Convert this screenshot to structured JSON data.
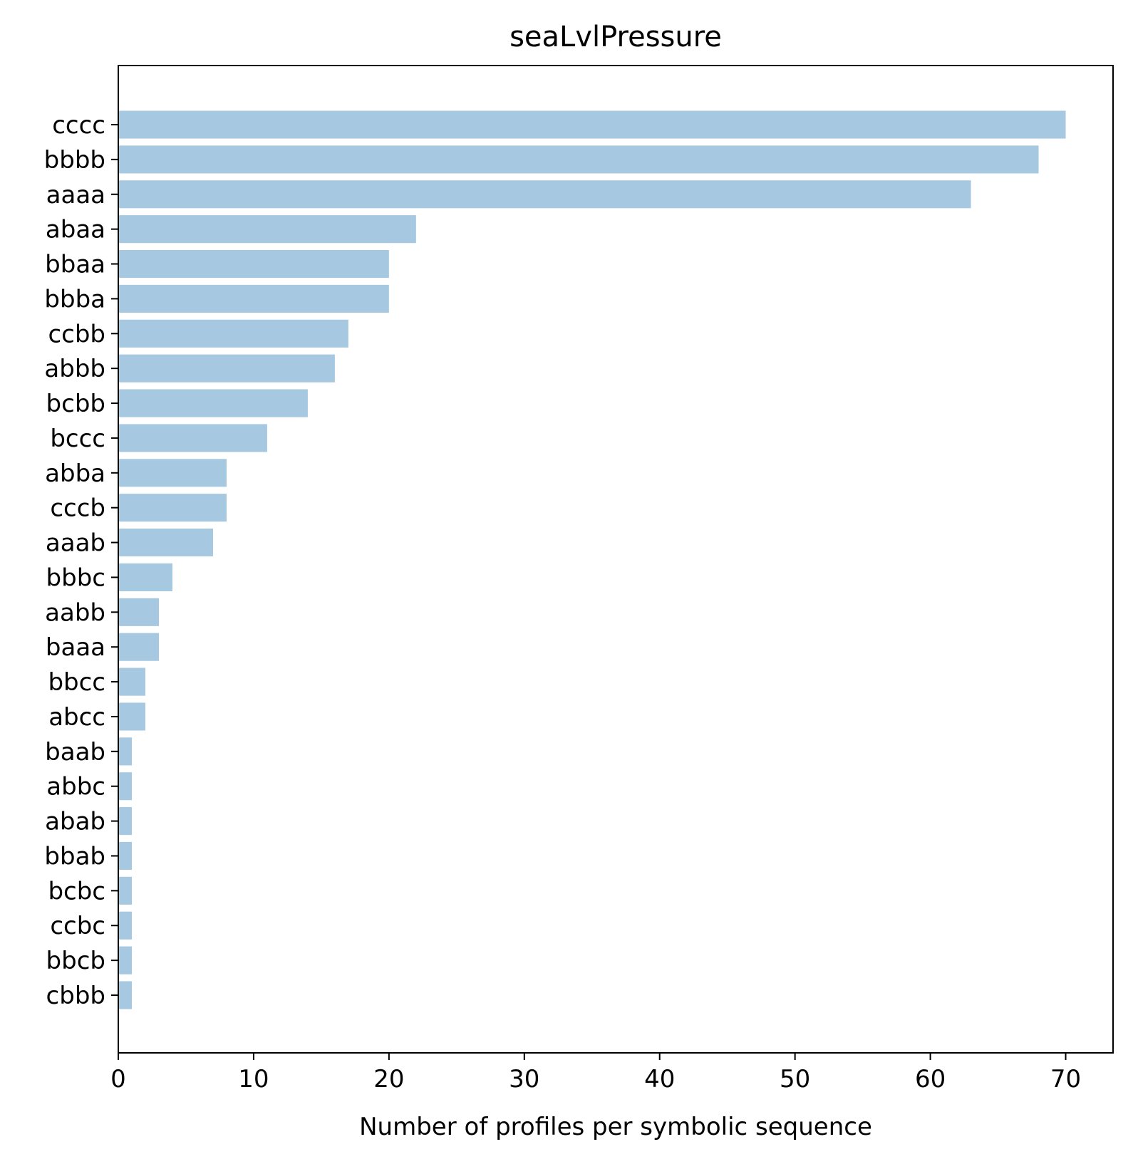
{
  "chart_data": {
    "type": "bar",
    "orientation": "horizontal",
    "title": "seaLvlPressure",
    "xlabel": "Number of profiles per symbolic sequence",
    "ylabel": "",
    "xlim": [
      0,
      73.5
    ],
    "xticks": [
      0,
      10,
      20,
      30,
      40,
      50,
      60,
      70
    ],
    "grid": false,
    "bar_color": "#a6c8e0",
    "categories": [
      "cccc",
      "bbbb",
      "aaaa",
      "abaa",
      "bbaa",
      "bbba",
      "ccbb",
      "abbb",
      "bcbb",
      "bccc",
      "abba",
      "cccb",
      "aaab",
      "bbbc",
      "aabb",
      "baaa",
      "bbcc",
      "abcc",
      "baab",
      "abbc",
      "abab",
      "bbab",
      "bcbc",
      "ccbc",
      "bbcb",
      "cbbb"
    ],
    "values": [
      70,
      68,
      63,
      22,
      20,
      20,
      17,
      16,
      14,
      11,
      8,
      8,
      7,
      4,
      3,
      3,
      2,
      2,
      1,
      1,
      1,
      1,
      1,
      1,
      1,
      1
    ]
  }
}
